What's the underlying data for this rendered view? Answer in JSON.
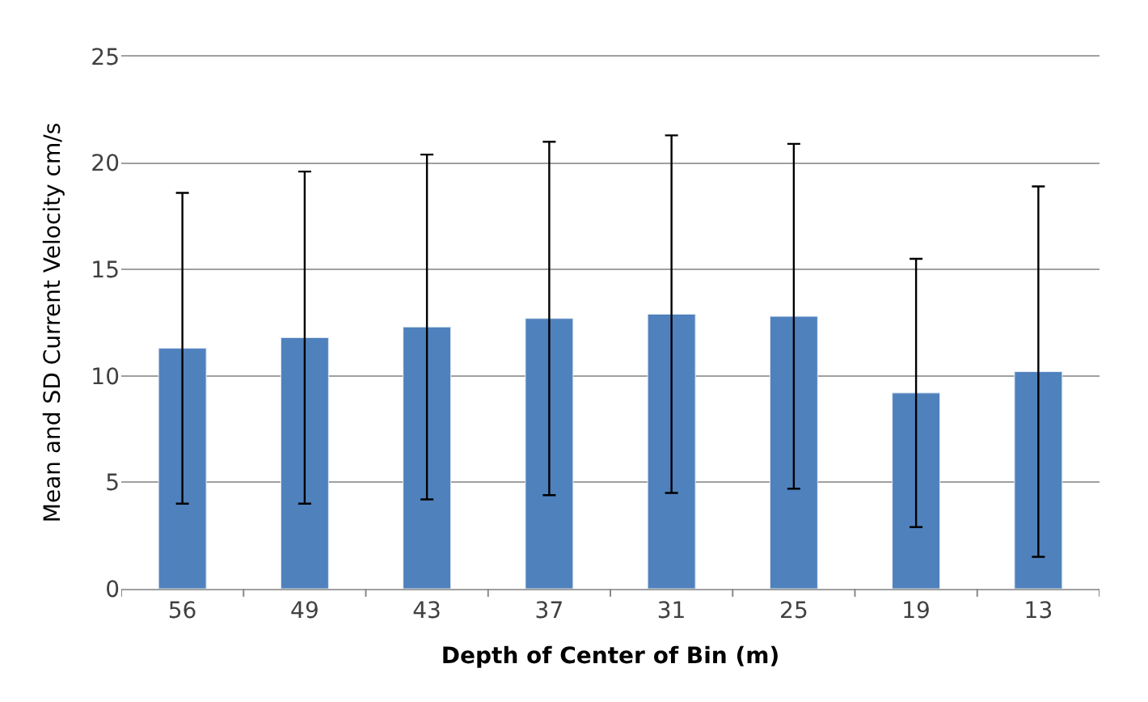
{
  "chart_data": {
    "type": "bar",
    "xlabel": "Depth of Center of Bin (m)",
    "ylabel": "Mean and SD Current Velocity cm/s",
    "categories": [
      "56",
      "49",
      "43",
      "37",
      "31",
      "25",
      "19",
      "13"
    ],
    "series": [
      {
        "color": "#4f81bd",
        "values": [
          11.3,
          11.8,
          12.3,
          12.7,
          12.9,
          12.8,
          9.2,
          10.2
        ],
        "errors": [
          7.3,
          7.8,
          8.1,
          8.3,
          8.4,
          8.1,
          6.3,
          8.7
        ]
      }
    ],
    "ylim": [
      0,
      25
    ],
    "yticks": [
      0,
      5,
      10,
      15,
      20,
      25
    ],
    "grid": "y"
  }
}
